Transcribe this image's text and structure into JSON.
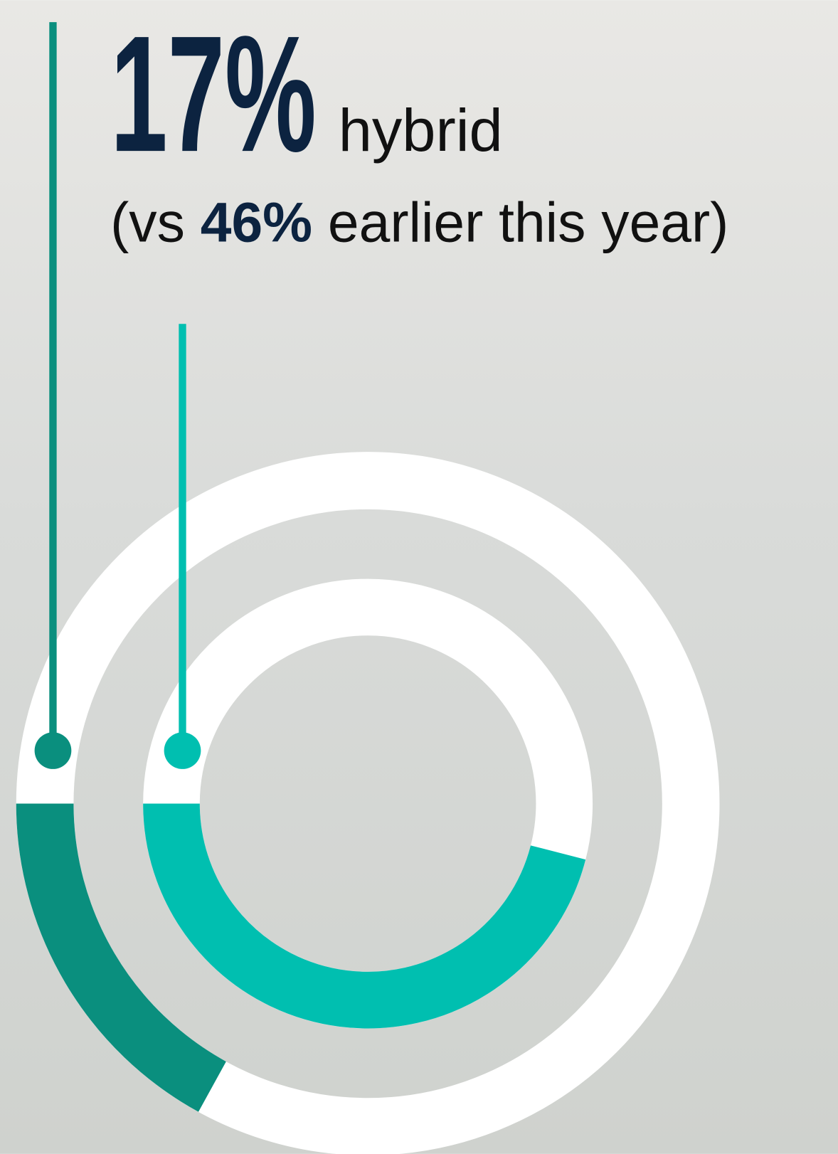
{
  "chart_data": {
    "type": "donut",
    "values": [
      17,
      46
    ],
    "value_labels": [
      "17%",
      "46%"
    ],
    "label": "hybrid",
    "comparison_prefix": "(vs",
    "comparison_suffix": "earlier this year)",
    "colors": [
      "#0a8f7e",
      "#00bfb0"
    ],
    "track_color": "#ffffff"
  }
}
